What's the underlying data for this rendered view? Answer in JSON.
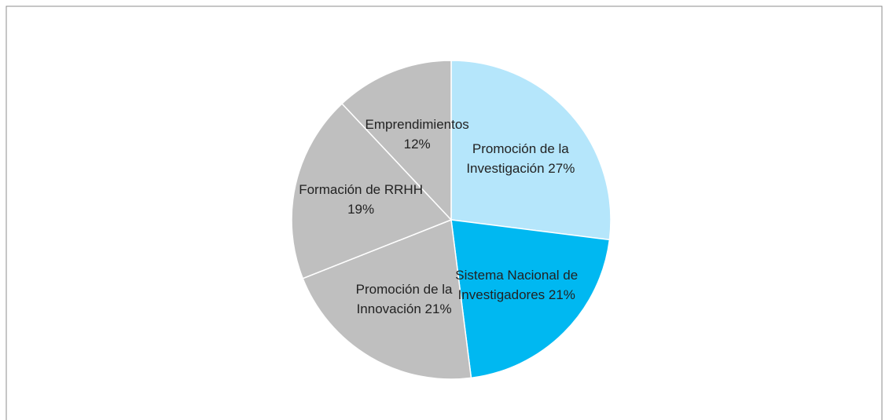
{
  "chart_data": {
    "type": "pie",
    "categories": [
      "Promoción de la Investigación",
      "Sistema Nacional de Investigadores",
      "Promoción de la Innovación",
      "Formación de RRHH",
      "Emprendimientos"
    ],
    "values": [
      27,
      21,
      21,
      19,
      12
    ],
    "value_labels": [
      "27%",
      "21%",
      "21%",
      "19%",
      "12%"
    ],
    "colors": [
      "#b5e6fb",
      "#00b8f1",
      "#bfbfbf",
      "#bfbfbf",
      "#bfbfbf"
    ]
  }
}
